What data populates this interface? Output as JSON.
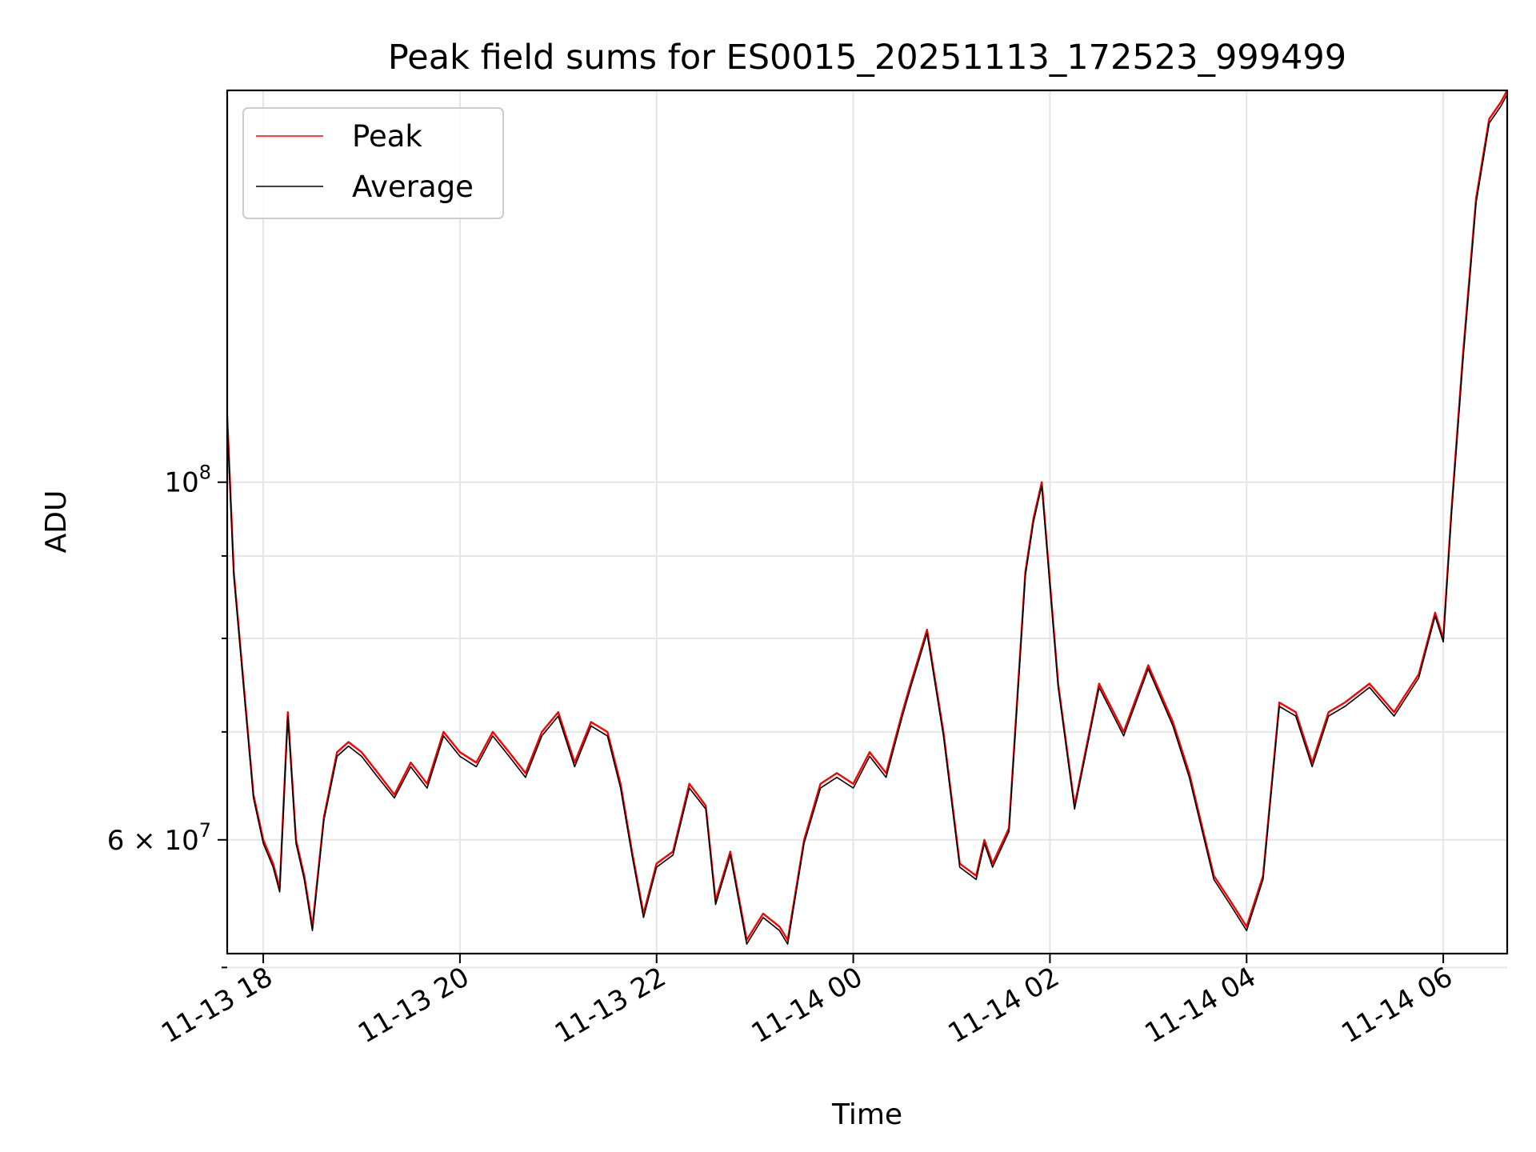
{
  "chart_data": {
    "type": "line",
    "title": "Peak field sums for ES0015_20251113_172523_999499",
    "xlabel": "Time",
    "ylabel": "ADU",
    "xlim": [
      "2025-11-13 17:38",
      "2025-11-14 06:39"
    ],
    "ylim": [
      51000000,
      175000000
    ],
    "yscale": "log",
    "grid": true,
    "legend": "upper-left",
    "x_ticks": [
      {
        "value": "2025-11-13 18:00",
        "label": "11-13 18"
      },
      {
        "value": "2025-11-13 20:00",
        "label": "11-13 20"
      },
      {
        "value": "2025-11-13 22:00",
        "label": "11-13 22"
      },
      {
        "value": "2025-11-14 00:00",
        "label": "11-14 00"
      },
      {
        "value": "2025-11-14 02:00",
        "label": "11-14 02"
      },
      {
        "value": "2025-11-14 04:00",
        "label": "11-14 04"
      },
      {
        "value": "2025-11-14 06:00",
        "label": "11-14 06"
      }
    ],
    "y_ticks": [
      {
        "value": 100000000,
        "base": "10",
        "exp": "8",
        "mant": ""
      },
      {
        "value": 60000000,
        "base": "10",
        "exp": "7",
        "mant": "6 × "
      }
    ],
    "y_minor": [
      50000000,
      70000000,
      80000000,
      90000000
    ],
    "series": [
      {
        "name": "Peak",
        "color": "#ff0000",
        "x": [
          "2025-11-13 17:38",
          "2025-11-13 17:42",
          "2025-11-13 17:48",
          "2025-11-13 17:54",
          "2025-11-13 18:00",
          "2025-11-13 18:06",
          "2025-11-13 18:10",
          "2025-11-13 18:15",
          "2025-11-13 18:20",
          "2025-11-13 18:25",
          "2025-11-13 18:30",
          "2025-11-13 18:37",
          "2025-11-13 18:45",
          "2025-11-13 18:52",
          "2025-11-13 19:00",
          "2025-11-13 19:10",
          "2025-11-13 19:20",
          "2025-11-13 19:30",
          "2025-11-13 19:40",
          "2025-11-13 19:50",
          "2025-11-13 20:00",
          "2025-11-13 20:10",
          "2025-11-13 20:20",
          "2025-11-13 20:30",
          "2025-11-13 20:40",
          "2025-11-13 20:50",
          "2025-11-13 21:00",
          "2025-11-13 21:10",
          "2025-11-13 21:20",
          "2025-11-13 21:30",
          "2025-11-13 21:38",
          "2025-11-13 21:45",
          "2025-11-13 21:52",
          "2025-11-13 22:00",
          "2025-11-13 22:10",
          "2025-11-13 22:20",
          "2025-11-13 22:30",
          "2025-11-13 22:36",
          "2025-11-13 22:45",
          "2025-11-13 22:55",
          "2025-11-13 23:05",
          "2025-11-13 23:15",
          "2025-11-13 23:20",
          "2025-11-13 23:30",
          "2025-11-13 23:40",
          "2025-11-13 23:50",
          "2025-11-14 00:00",
          "2025-11-14 00:10",
          "2025-11-14 00:20",
          "2025-11-14 00:30",
          "2025-11-14 00:35",
          "2025-11-14 00:45",
          "2025-11-14 00:55",
          "2025-11-14 01:05",
          "2025-11-14 01:15",
          "2025-11-14 01:20",
          "2025-11-14 01:25",
          "2025-11-14 01:35",
          "2025-11-14 01:45",
          "2025-11-14 01:50",
          "2025-11-14 01:55",
          "2025-11-14 02:05",
          "2025-11-14 02:15",
          "2025-11-14 02:30",
          "2025-11-14 02:45",
          "2025-11-14 03:00",
          "2025-11-14 03:15",
          "2025-11-14 03:25",
          "2025-11-14 03:40",
          "2025-11-14 03:50",
          "2025-11-14 04:00",
          "2025-11-14 04:10",
          "2025-11-14 04:20",
          "2025-11-14 04:30",
          "2025-11-14 04:40",
          "2025-11-14 04:50",
          "2025-11-14 05:00",
          "2025-11-14 05:15",
          "2025-11-14 05:30",
          "2025-11-14 05:45",
          "2025-11-14 05:55",
          "2025-11-14 06:00",
          "2025-11-14 06:05",
          "2025-11-14 06:12",
          "2025-11-14 06:20",
          "2025-11-14 06:28",
          "2025-11-14 06:35",
          "2025-11-14 06:39"
        ],
        "y": [
          110000000,
          88000000,
          75000000,
          64000000,
          60000000,
          58000000,
          56000000,
          72000000,
          60000000,
          57000000,
          53000000,
          62000000,
          68000000,
          69000000,
          68000000,
          66000000,
          64000000,
          67000000,
          65000000,
          70000000,
          68000000,
          67000000,
          70000000,
          68000000,
          66000000,
          70000000,
          72000000,
          67000000,
          71000000,
          70000000,
          65000000,
          59000000,
          54000000,
          58000000,
          59000000,
          65000000,
          63000000,
          55000000,
          59000000,
          52000000,
          54000000,
          53000000,
          52000000,
          60000000,
          65000000,
          66000000,
          65000000,
          68000000,
          66000000,
          72000000,
          75000000,
          81000000,
          70000000,
          58000000,
          57000000,
          60000000,
          58000000,
          61000000,
          88000000,
          95000000,
          100000000,
          75000000,
          63000000,
          75000000,
          70000000,
          77000000,
          71000000,
          66000000,
          57000000,
          55000000,
          53000000,
          57000000,
          73000000,
          72000000,
          67000000,
          72000000,
          73000000,
          75000000,
          72000000,
          76000000,
          83000000,
          80000000,
          96000000,
          120000000,
          150000000,
          168000000,
          172000000,
          175000000
        ]
      },
      {
        "name": "Average",
        "color": "#000000",
        "x": [
          "2025-11-13 17:38",
          "2025-11-13 17:42",
          "2025-11-13 17:48",
          "2025-11-13 17:54",
          "2025-11-13 18:00",
          "2025-11-13 18:06",
          "2025-11-13 18:10",
          "2025-11-13 18:15",
          "2025-11-13 18:20",
          "2025-11-13 18:25",
          "2025-11-13 18:30",
          "2025-11-13 18:37",
          "2025-11-13 18:45",
          "2025-11-13 18:52",
          "2025-11-13 19:00",
          "2025-11-13 19:10",
          "2025-11-13 19:20",
          "2025-11-13 19:30",
          "2025-11-13 19:40",
          "2025-11-13 19:50",
          "2025-11-13 20:00",
          "2025-11-13 20:10",
          "2025-11-13 20:20",
          "2025-11-13 20:30",
          "2025-11-13 20:40",
          "2025-11-13 20:50",
          "2025-11-13 21:00",
          "2025-11-13 21:10",
          "2025-11-13 21:20",
          "2025-11-13 21:30",
          "2025-11-13 21:38",
          "2025-11-13 21:45",
          "2025-11-13 21:52",
          "2025-11-13 22:00",
          "2025-11-13 22:10",
          "2025-11-13 22:20",
          "2025-11-13 22:30",
          "2025-11-13 22:36",
          "2025-11-13 22:45",
          "2025-11-13 22:55",
          "2025-11-13 23:05",
          "2025-11-13 23:15",
          "2025-11-13 23:20",
          "2025-11-13 23:30",
          "2025-11-13 23:40",
          "2025-11-13 23:50",
          "2025-11-14 00:00",
          "2025-11-14 00:10",
          "2025-11-14 00:20",
          "2025-11-14 00:30",
          "2025-11-14 00:35",
          "2025-11-14 00:45",
          "2025-11-14 00:55",
          "2025-11-14 01:05",
          "2025-11-14 01:15",
          "2025-11-14 01:20",
          "2025-11-14 01:25",
          "2025-11-14 01:35",
          "2025-11-14 01:45",
          "2025-11-14 01:50",
          "2025-11-14 01:55",
          "2025-11-14 02:05",
          "2025-11-14 02:15",
          "2025-11-14 02:30",
          "2025-11-14 02:45",
          "2025-11-14 03:00",
          "2025-11-14 03:15",
          "2025-11-14 03:25",
          "2025-11-14 03:40",
          "2025-11-14 03:50",
          "2025-11-14 04:00",
          "2025-11-14 04:10",
          "2025-11-14 04:20",
          "2025-11-14 04:30",
          "2025-11-14 04:40",
          "2025-11-14 04:50",
          "2025-11-14 05:00",
          "2025-11-14 05:15",
          "2025-11-14 05:30",
          "2025-11-14 05:45",
          "2025-11-14 05:55",
          "2025-11-14 06:00",
          "2025-11-14 06:05",
          "2025-11-14 06:12",
          "2025-11-14 06:20",
          "2025-11-14 06:28",
          "2025-11-14 06:35",
          "2025-11-14 06:39"
        ],
        "y": [
          109000000,
          87500000,
          74600000,
          63700000,
          59700000,
          57700000,
          55700000,
          71600000,
          59700000,
          56700000,
          52700000,
          61700000,
          67600000,
          68600000,
          67600000,
          65600000,
          63700000,
          66600000,
          64600000,
          69600000,
          67600000,
          66600000,
          69600000,
          67600000,
          65600000,
          69600000,
          71600000,
          66600000,
          70600000,
          69600000,
          64600000,
          58700000,
          53700000,
          57700000,
          58700000,
          64600000,
          62700000,
          54700000,
          58700000,
          51700000,
          53700000,
          52700000,
          51700000,
          59700000,
          64600000,
          65600000,
          64600000,
          67600000,
          65600000,
          71600000,
          74600000,
          80600000,
          69600000,
          57700000,
          56700000,
          59700000,
          57700000,
          60700000,
          87500000,
          94500000,
          99500000,
          74600000,
          62700000,
          74600000,
          69600000,
          76600000,
          70600000,
          65600000,
          56700000,
          54700000,
          52700000,
          56700000,
          72600000,
          71600000,
          66600000,
          71600000,
          72600000,
          74600000,
          71600000,
          75600000,
          82600000,
          79600000,
          95500000,
          119000000,
          149000000,
          167000000,
          171000000,
          174000000
        ]
      }
    ]
  }
}
